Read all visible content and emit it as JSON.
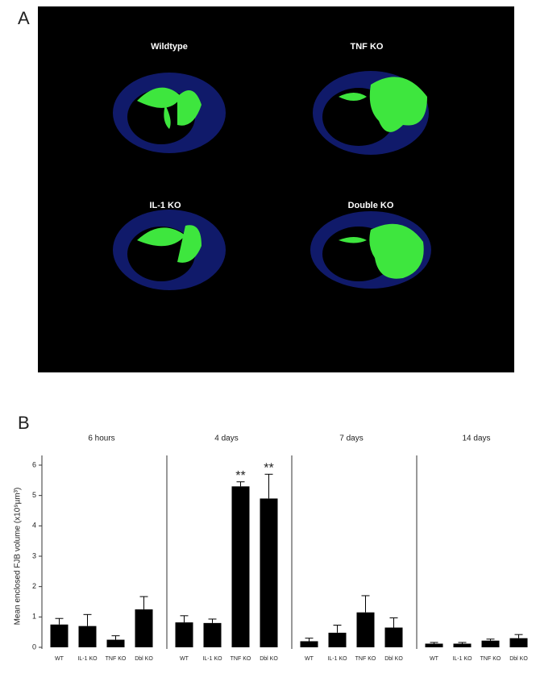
{
  "panel_labels": [
    "A",
    "B"
  ],
  "image_labels": [
    "Wildtype",
    "TNF KO",
    "IL-1 KO",
    "Double KO"
  ],
  "chart_data": [
    {
      "type": "bar",
      "title": "6 hours",
      "ylabel": "Mean enclosed FJB volume (x10⁹µm³)",
      "categories": [
        "WT",
        "IL-1 KO",
        "TNF KO",
        "Dbl KO"
      ],
      "values": [
        0.75,
        0.7,
        0.25,
        1.25
      ],
      "errors": [
        0.2,
        0.38,
        0.13,
        0.42
      ],
      "color": "#000000",
      "ylim": [
        0,
        6
      ],
      "yticks": [
        0,
        1,
        2,
        3,
        4,
        5,
        6
      ]
    },
    {
      "type": "bar",
      "title": "4 days",
      "categories": [
        "WT",
        "IL-1 KO",
        "TNF KO",
        "Dbl KO"
      ],
      "values": [
        0.82,
        0.8,
        5.3,
        4.9
      ],
      "errors": [
        0.22,
        0.13,
        0.15,
        0.8
      ],
      "color": "#000000",
      "ylim": [
        0,
        6
      ],
      "annotations": [
        {
          "text": "**",
          "x": "TNF KO"
        },
        {
          "text": "**",
          "x": "Dbl KO"
        }
      ]
    },
    {
      "type": "bar",
      "title": "7 days",
      "categories": [
        "WT",
        "IL-1 KO",
        "TNF KO",
        "Dbl KO"
      ],
      "values": [
        0.2,
        0.48,
        1.15,
        0.65
      ],
      "errors": [
        0.1,
        0.25,
        0.55,
        0.32
      ],
      "color": "#000000",
      "ylim": [
        0,
        6
      ]
    },
    {
      "type": "bar",
      "title": "14 days",
      "categories": [
        "WT",
        "IL-1 KO",
        "TNF KO",
        "Dbl KO"
      ],
      "values": [
        0.12,
        0.12,
        0.22,
        0.3
      ],
      "errors": [
        0.04,
        0.04,
        0.05,
        0.12
      ],
      "color": "#000000",
      "ylim": [
        0,
        6
      ]
    }
  ]
}
